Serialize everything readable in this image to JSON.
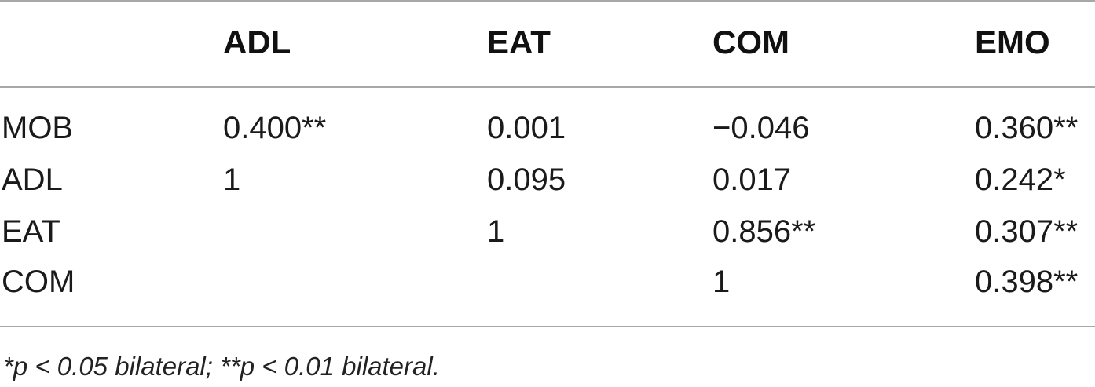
{
  "table": {
    "headers": [
      "",
      "ADL",
      "EAT",
      "COM",
      "EMO"
    ],
    "rows": [
      [
        "MOB",
        "0.400**",
        "0.001",
        "−0.046",
        "0.360**"
      ],
      [
        "ADL",
        "1",
        "0.095",
        "0.017",
        "0.242*"
      ],
      [
        "EAT",
        "",
        "1",
        "0.856**",
        "0.307**"
      ],
      [
        "COM",
        "",
        "",
        "1",
        "0.398**"
      ]
    ]
  },
  "footnote": "*p < 0.05 bilateral; **p < 0.01 bilateral."
}
